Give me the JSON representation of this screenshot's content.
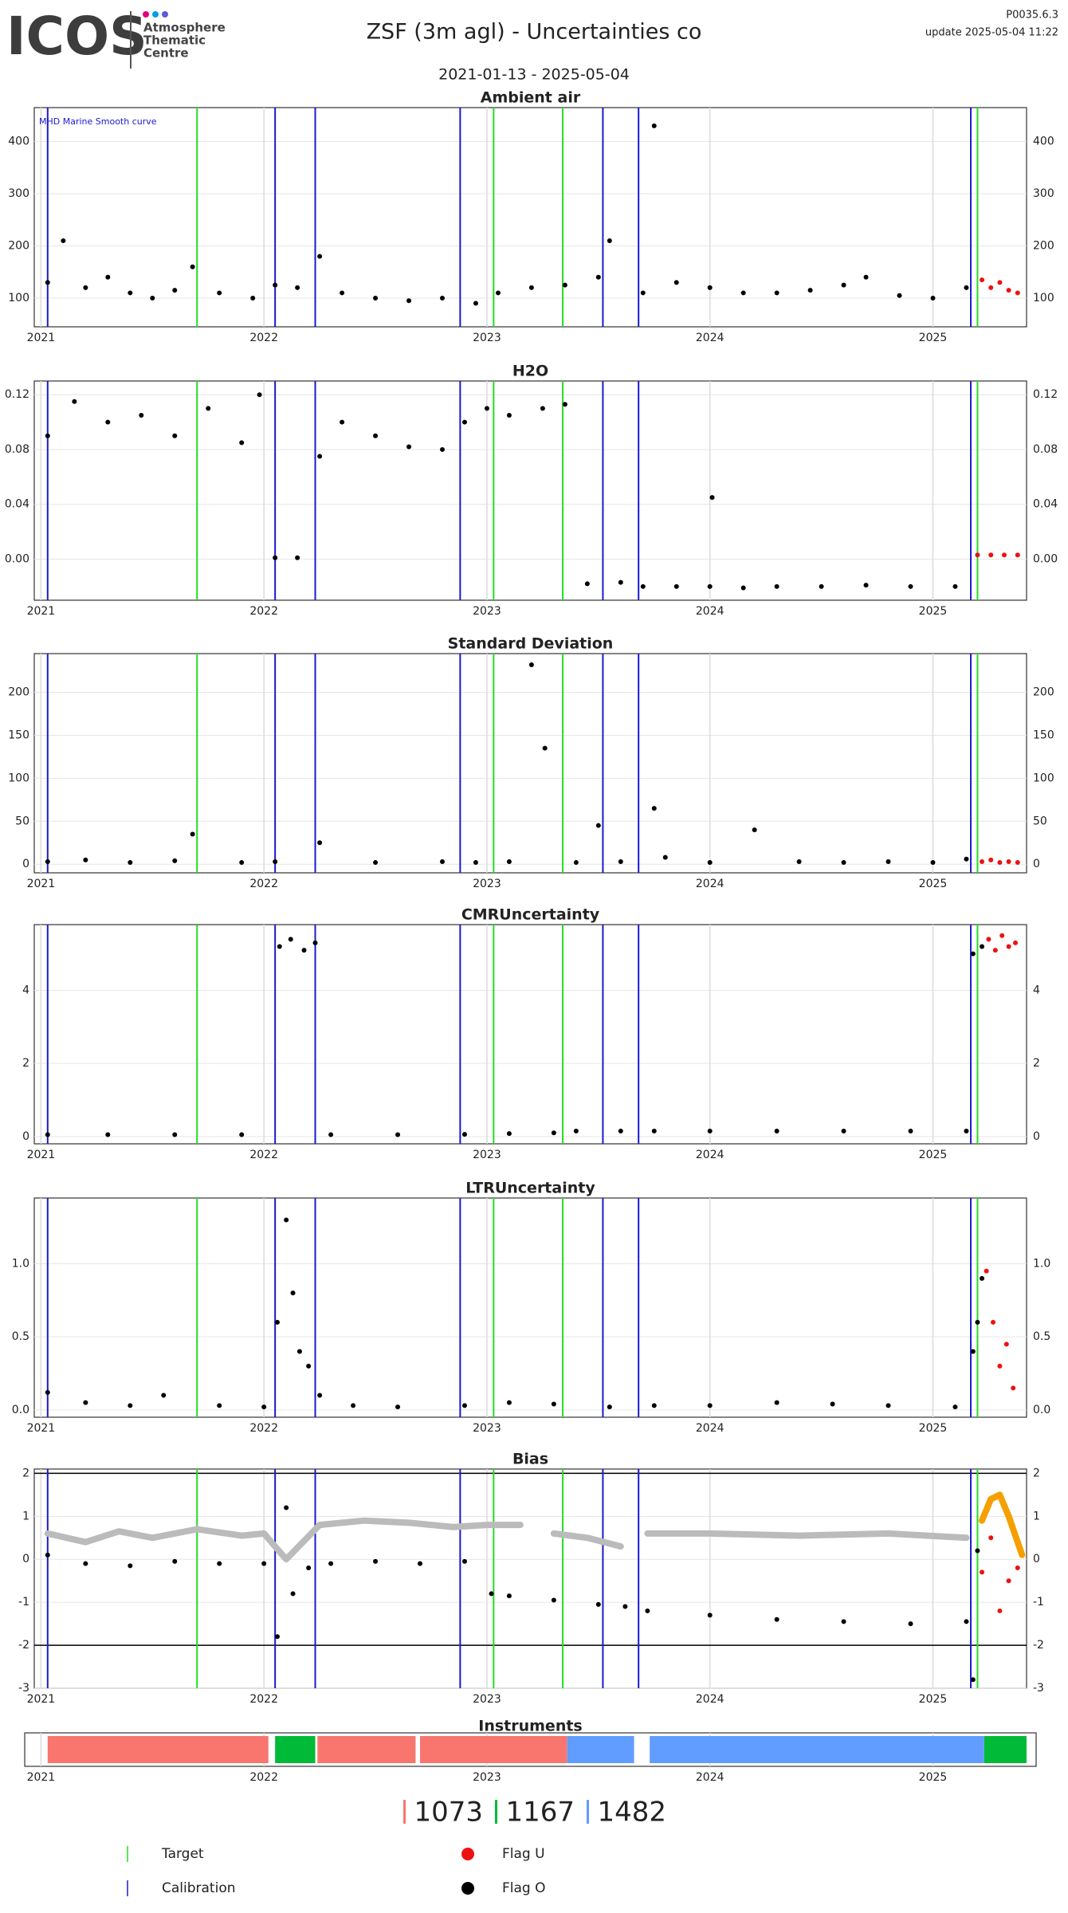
{
  "header": {
    "logo": "ICOS",
    "logo_sub": [
      "Atmosphere",
      "Thematic",
      "Centre"
    ],
    "title": "ZSF  (3m agl) - Uncertainties co",
    "subtitle": "2021-01-13 - 2025-05-04",
    "version": "P0035.6.3",
    "update": "update  2025-05-04 11:22"
  },
  "events": {
    "target": {
      "name": "Target",
      "color": "#22dd22",
      "x": [
        2021.7,
        2023.03,
        2023.34,
        2025.2
      ]
    },
    "calibration": {
      "name": "Calibration",
      "color": "#1a1acc",
      "x": [
        2021.03,
        2022.05,
        2022.23,
        2022.88,
        2023.52,
        2023.68,
        2025.17
      ]
    }
  },
  "chart_data": [
    {
      "type": "scatter",
      "title": "Ambient air",
      "annotation": "MHD Marine Smooth curve",
      "xlim": [
        2020.97,
        2025.42
      ],
      "xticks": [
        2021,
        2022,
        2023,
        2024,
        2025
      ],
      "ylim": [
        45,
        465
      ],
      "yticks": [
        100,
        200,
        300,
        400
      ],
      "grid": true,
      "series": [
        {
          "name": "Flag O",
          "color": "#000000",
          "x": [
            2021.03,
            2021.1,
            2021.2,
            2021.3,
            2021.4,
            2021.5,
            2021.6,
            2021.68,
            2021.8,
            2021.95,
            2022.05,
            2022.15,
            2022.25,
            2022.35,
            2022.5,
            2022.65,
            2022.8,
            2022.95,
            2023.05,
            2023.2,
            2023.35,
            2023.5,
            2023.55,
            2023.7,
            2023.75,
            2023.85,
            2024.0,
            2024.15,
            2024.3,
            2024.45,
            2024.6,
            2024.7,
            2024.85,
            2025.0,
            2025.15
          ],
          "values": [
            130,
            210,
            120,
            140,
            110,
            100,
            115,
            160,
            110,
            100,
            125,
            120,
            180,
            110,
            100,
            95,
            100,
            90,
            110,
            120,
            125,
            140,
            210,
            110,
            430,
            130,
            120,
            110,
            110,
            115,
            125,
            140,
            105,
            100,
            120
          ]
        },
        {
          "name": "Flag U",
          "color": "#ee1111",
          "x": [
            2025.22,
            2025.26,
            2025.3,
            2025.34,
            2025.38
          ],
          "values": [
            135,
            120,
            130,
            115,
            110
          ]
        }
      ]
    },
    {
      "type": "scatter",
      "title": "H2O",
      "xlim": [
        2020.97,
        2025.42
      ],
      "xticks": [
        2021,
        2022,
        2023,
        2024,
        2025
      ],
      "ylim": [
        -0.03,
        0.13
      ],
      "yticks": [
        {
          "value": 0,
          "label": "0.00"
        },
        0.04,
        0.08,
        0.12
      ],
      "grid": true,
      "series": [
        {
          "name": "Flag O",
          "color": "#000000",
          "x": [
            2021.03,
            2021.15,
            2021.3,
            2021.45,
            2021.6,
            2021.75,
            2021.9,
            2021.98,
            2022.05,
            2022.15,
            2022.25,
            2022.35,
            2022.5,
            2022.65,
            2022.8,
            2022.9,
            2023.0,
            2023.1,
            2023.25,
            2023.35,
            2023.45,
            2023.6,
            2023.7,
            2023.85,
            2024.0,
            2024.01,
            2024.15,
            2024.3,
            2024.5,
            2024.7,
            2024.9,
            2025.1
          ],
          "values": [
            0.09,
            0.115,
            0.1,
            0.105,
            0.09,
            0.11,
            0.085,
            0.12,
            0.001,
            0.001,
            0.075,
            0.1,
            0.09,
            0.082,
            0.08,
            0.1,
            0.11,
            0.105,
            0.11,
            0.113,
            -0.018,
            -0.017,
            -0.02,
            -0.02,
            -0.02,
            0.045,
            -0.021,
            -0.02,
            -0.02,
            -0.019,
            -0.02,
            -0.02
          ]
        },
        {
          "name": "Flag U",
          "color": "#ee1111",
          "x": [
            2025.2,
            2025.26,
            2025.32,
            2025.38
          ],
          "values": [
            0.003,
            0.003,
            0.003,
            0.003
          ]
        }
      ]
    },
    {
      "type": "scatter",
      "title": "Standard Deviation",
      "xlim": [
        2020.97,
        2025.42
      ],
      "xticks": [
        2021,
        2022,
        2023,
        2024,
        2025
      ],
      "ylim": [
        -10,
        245
      ],
      "yticks": [
        0,
        50,
        100,
        150,
        200
      ],
      "grid": true,
      "series": [
        {
          "name": "Flag O",
          "color": "#000000",
          "x": [
            2021.03,
            2021.2,
            2021.4,
            2021.6,
            2021.68,
            2021.9,
            2022.05,
            2022.25,
            2022.5,
            2022.8,
            2022.95,
            2023.1,
            2023.2,
            2023.26,
            2023.4,
            2023.5,
            2023.6,
            2023.75,
            2023.8,
            2024.0,
            2024.2,
            2024.4,
            2024.6,
            2024.8,
            2025.0,
            2025.15
          ],
          "values": [
            3,
            5,
            2,
            4,
            35,
            2,
            3,
            25,
            2,
            3,
            2,
            3,
            232,
            135,
            2,
            45,
            3,
            65,
            8,
            2,
            40,
            3,
            2,
            3,
            2,
            6
          ]
        },
        {
          "name": "Flag U",
          "color": "#ee1111",
          "x": [
            2025.22,
            2025.26,
            2025.3,
            2025.34,
            2025.38
          ],
          "values": [
            3,
            5,
            2,
            3,
            2
          ]
        }
      ]
    },
    {
      "type": "scatter",
      "title": "CMRUncertainty",
      "xlim": [
        2020.97,
        2025.42
      ],
      "xticks": [
        2021,
        2022,
        2023,
        2024,
        2025
      ],
      "ylim": [
        -0.2,
        5.8
      ],
      "yticks": [
        0,
        2,
        4
      ],
      "grid": true,
      "series": [
        {
          "name": "Flag O",
          "color": "#000000",
          "x": [
            2021.03,
            2021.3,
            2021.6,
            2021.9,
            2022.07,
            2022.12,
            2022.18,
            2022.23,
            2022.3,
            2022.6,
            2022.9,
            2023.1,
            2023.3,
            2023.4,
            2023.6,
            2023.75,
            2024.0,
            2024.3,
            2024.6,
            2024.9,
            2025.15,
            2025.18,
            2025.22
          ],
          "values": [
            0.05,
            0.05,
            0.05,
            0.05,
            5.2,
            5.4,
            5.1,
            5.3,
            0.05,
            0.05,
            0.06,
            0.08,
            0.1,
            0.15,
            0.15,
            0.15,
            0.15,
            0.15,
            0.15,
            0.15,
            0.15,
            5.0,
            5.2
          ]
        },
        {
          "name": "Flag U",
          "color": "#ee1111",
          "x": [
            2025.25,
            2025.28,
            2025.31,
            2025.34,
            2025.37
          ],
          "values": [
            5.4,
            5.1,
            5.5,
            5.2,
            5.3
          ]
        }
      ]
    },
    {
      "type": "scatter",
      "title": "LTRUncertainty",
      "xlim": [
        2020.97,
        2025.42
      ],
      "xticks": [
        2021,
        2022,
        2023,
        2024,
        2025
      ],
      "ylim": [
        -0.05,
        1.45
      ],
      "yticks": [
        {
          "value": 0,
          "label": "0.0"
        },
        0.5,
        {
          "value": 1,
          "label": "1.0"
        }
      ],
      "grid": true,
      "series": [
        {
          "name": "Flag O",
          "color": "#000000",
          "x": [
            2021.03,
            2021.2,
            2021.4,
            2021.55,
            2021.8,
            2022.0,
            2022.06,
            2022.1,
            2022.13,
            2022.16,
            2022.2,
            2022.25,
            2022.4,
            2022.6,
            2022.9,
            2023.1,
            2023.3,
            2023.55,
            2023.75,
            2024.0,
            2024.3,
            2024.55,
            2024.8,
            2025.1,
            2025.18,
            2025.2,
            2025.22
          ],
          "values": [
            0.12,
            0.05,
            0.03,
            0.1,
            0.03,
            0.02,
            0.6,
            1.3,
            0.8,
            0.4,
            0.3,
            0.1,
            0.03,
            0.02,
            0.03,
            0.05,
            0.04,
            0.02,
            0.03,
            0.03,
            0.05,
            0.04,
            0.03,
            0.02,
            0.4,
            0.6,
            0.9
          ]
        },
        {
          "name": "Flag U",
          "color": "#ee1111",
          "x": [
            2025.24,
            2025.27,
            2025.3,
            2025.33,
            2025.36
          ],
          "values": [
            0.95,
            0.6,
            0.3,
            0.45,
            0.15
          ]
        }
      ]
    },
    {
      "type": "scatter",
      "title": "Bias",
      "xlim": [
        2020.97,
        2025.42
      ],
      "xticks": [
        2021,
        2022,
        2023,
        2024,
        2025
      ],
      "ylim": [
        -3,
        2.1
      ],
      "yticks": [
        -3,
        -2,
        -1,
        0,
        1,
        2
      ],
      "grid": true,
      "hlines": [
        2,
        -2
      ],
      "series": [
        {
          "color": "#bbbbbb",
          "mode": "line",
          "x": [
            2021.03,
            2021.2,
            2021.35,
            2021.5,
            2021.7,
            2021.9,
            2022.0,
            2022.1,
            2022.25,
            2022.45,
            2022.65,
            2022.85,
            2023.0,
            2023.15,
            2023.25,
            2023.3,
            2023.45,
            2023.6,
            2023.65,
            2023.72,
            2024.0,
            2024.4,
            2024.8,
            2025.15
          ],
          "values": [
            0.6,
            0.4,
            0.65,
            0.5,
            0.7,
            0.55,
            0.6,
            0.0,
            0.8,
            0.9,
            0.85,
            0.75,
            0.8,
            0.8,
            null,
            0.6,
            0.5,
            0.3,
            null,
            0.6,
            0.6,
            0.55,
            0.6,
            0.5
          ]
        },
        {
          "color": "#f5a000",
          "mode": "line",
          "x": [
            2025.22,
            2025.26,
            2025.3,
            2025.34,
            2025.4
          ],
          "values": [
            0.9,
            1.4,
            1.5,
            1.0,
            0.1
          ]
        },
        {
          "name": "Flag O",
          "color": "#000000",
          "x": [
            2021.03,
            2021.2,
            2021.4,
            2021.6,
            2021.8,
            2022.0,
            2022.06,
            2022.1,
            2022.13,
            2022.2,
            2022.3,
            2022.5,
            2022.7,
            2022.9,
            2023.02,
            2023.1,
            2023.3,
            2023.5,
            2023.62,
            2023.72,
            2024.0,
            2024.3,
            2024.6,
            2024.9,
            2025.15,
            2025.18,
            2025.2
          ],
          "values": [
            0.1,
            -0.1,
            -0.15,
            -0.05,
            -0.1,
            -0.1,
            -1.8,
            1.2,
            -0.8,
            -0.2,
            -0.1,
            -0.05,
            -0.1,
            -0.05,
            -0.8,
            -0.85,
            -0.95,
            -1.05,
            -1.1,
            -1.2,
            -1.3,
            -1.4,
            -1.45,
            -1.5,
            -1.45,
            -2.8,
            0.2
          ]
        },
        {
          "name": "Flag U",
          "color": "#ee1111",
          "x": [
            2025.22,
            2025.26,
            2025.3,
            2025.34,
            2025.38
          ],
          "values": [
            -0.3,
            0.5,
            -1.2,
            -0.5,
            -0.2
          ]
        }
      ]
    },
    {
      "type": "timeline",
      "title": "Instruments",
      "xlim": [
        2020.97,
        2025.42
      ],
      "xticks": [
        2021,
        2022,
        2023,
        2024,
        2025
      ],
      "series": [
        {
          "name": "1073",
          "color": "#f8766d",
          "ranges": [
            [
              2021.03,
              2022.02
            ],
            [
              2022.24,
              2022.68
            ],
            [
              2022.7,
              2023.36
            ]
          ]
        },
        {
          "name": "1167",
          "color": "#00ba38",
          "ranges": [
            [
              2022.05,
              2022.23
            ],
            [
              2025.23,
              2025.42
            ]
          ]
        },
        {
          "name": "1482",
          "color": "#619cff",
          "ranges": [
            [
              2023.36,
              2023.66
            ],
            [
              2023.73,
              2025.23
            ]
          ]
        }
      ]
    }
  ]
}
